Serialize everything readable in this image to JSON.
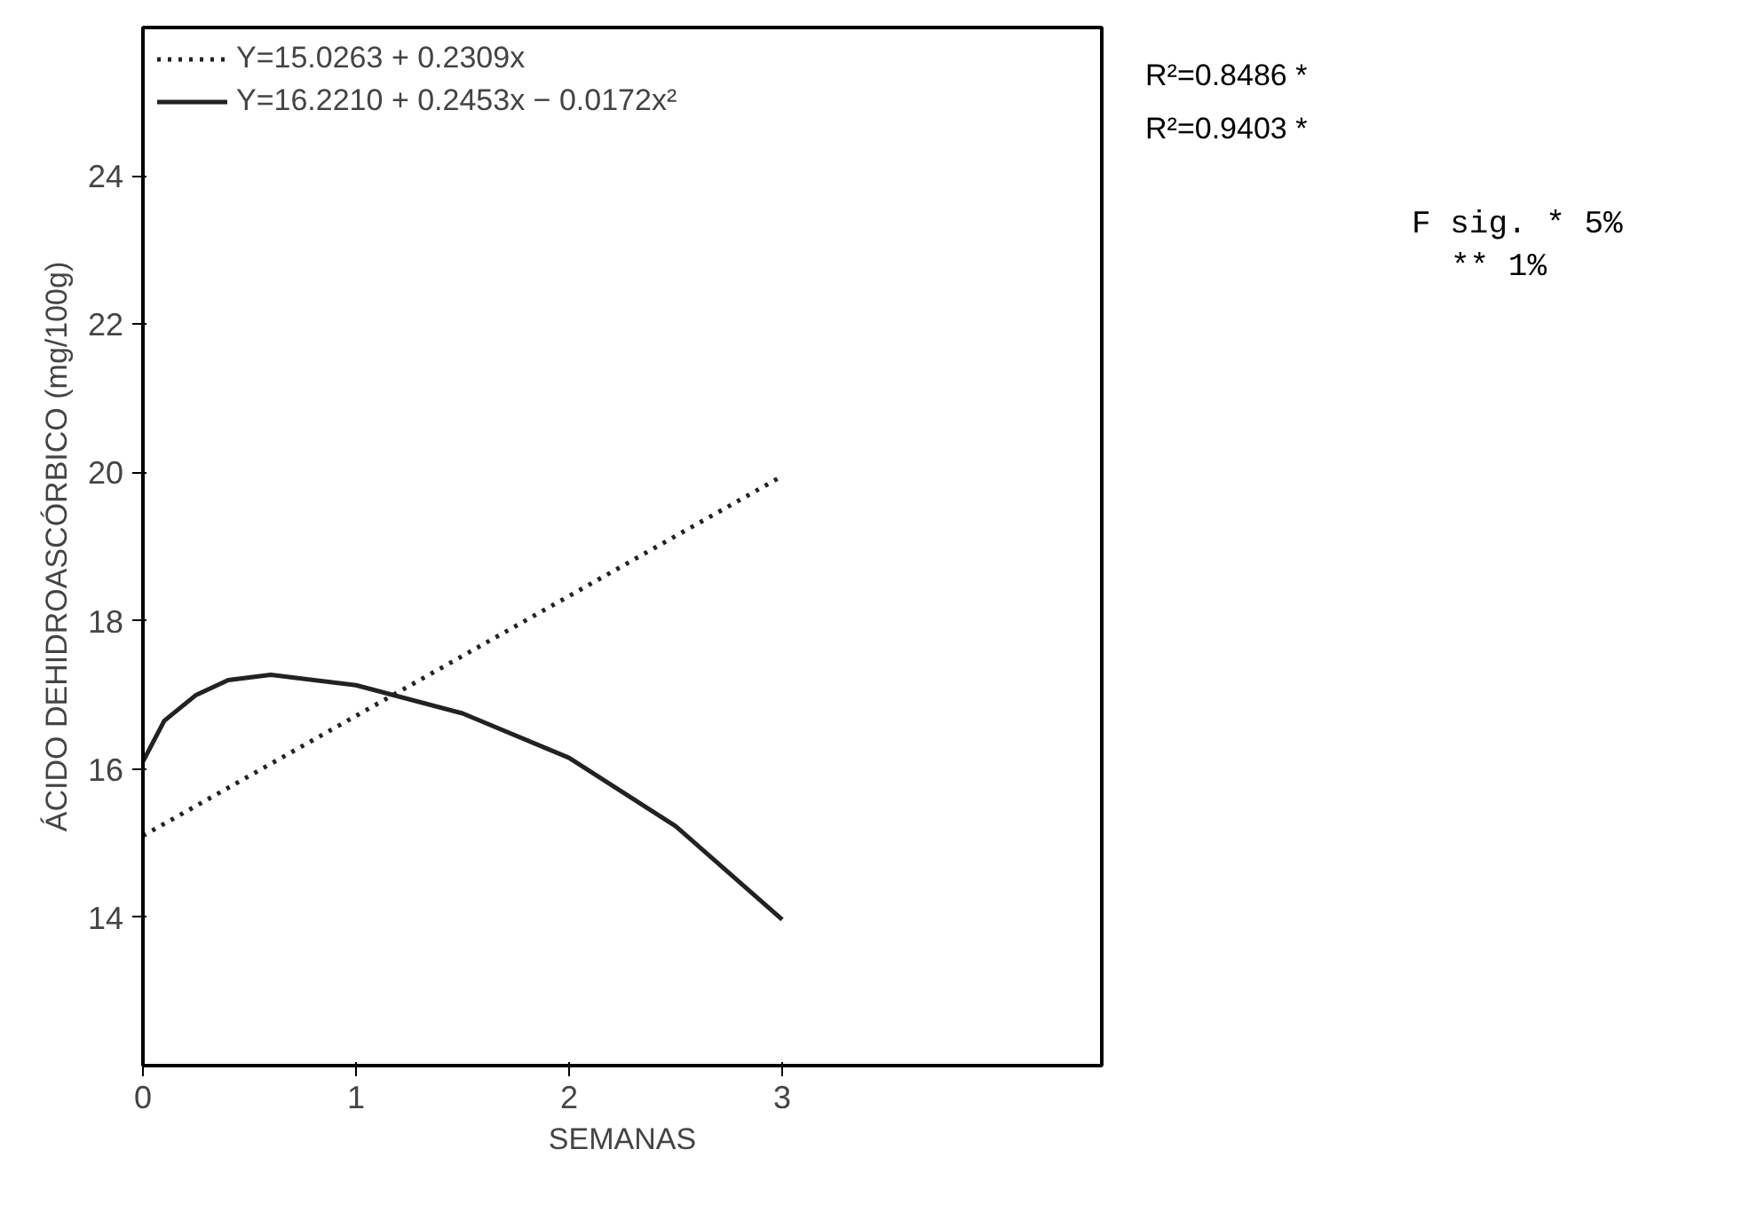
{
  "chart_data": {
    "type": "line",
    "xlabel": "SEMANAS",
    "ylabel": "ÁCIDO DEHIDROASCÓRBICO (mg/100g)",
    "xlim": [
      0,
      4.5
    ],
    "ylim": [
      12,
      26
    ],
    "xticks": [
      0,
      1,
      2,
      3
    ],
    "yticks": [
      14,
      16,
      18,
      20,
      22,
      24
    ],
    "grid": false,
    "legend": "top left",
    "marker": "none",
    "series": [
      {
        "name": "Y=15.0263 + 0.2309x",
        "color": "#222222",
        "line_style": "dotted",
        "x": [
          0,
          3
        ],
        "values": [
          15.1,
          19.95
        ]
      },
      {
        "name": "Y=16.2210 + 0.2453x − 0.0172x²",
        "color": "#222222",
        "line_style": "solid",
        "x": [
          0,
          0.1,
          0.25,
          0.4,
          0.6,
          1,
          1.5,
          2,
          2.5,
          3
        ],
        "values": [
          16.1,
          16.65,
          17.0,
          17.2,
          17.27,
          17.13,
          16.75,
          16.15,
          15.23,
          13.97
        ]
      }
    ],
    "annotations": [
      "R²=0.8486 *",
      "R²=0.9403 *",
      "F sig. * 5%",
      "** 1%"
    ]
  }
}
